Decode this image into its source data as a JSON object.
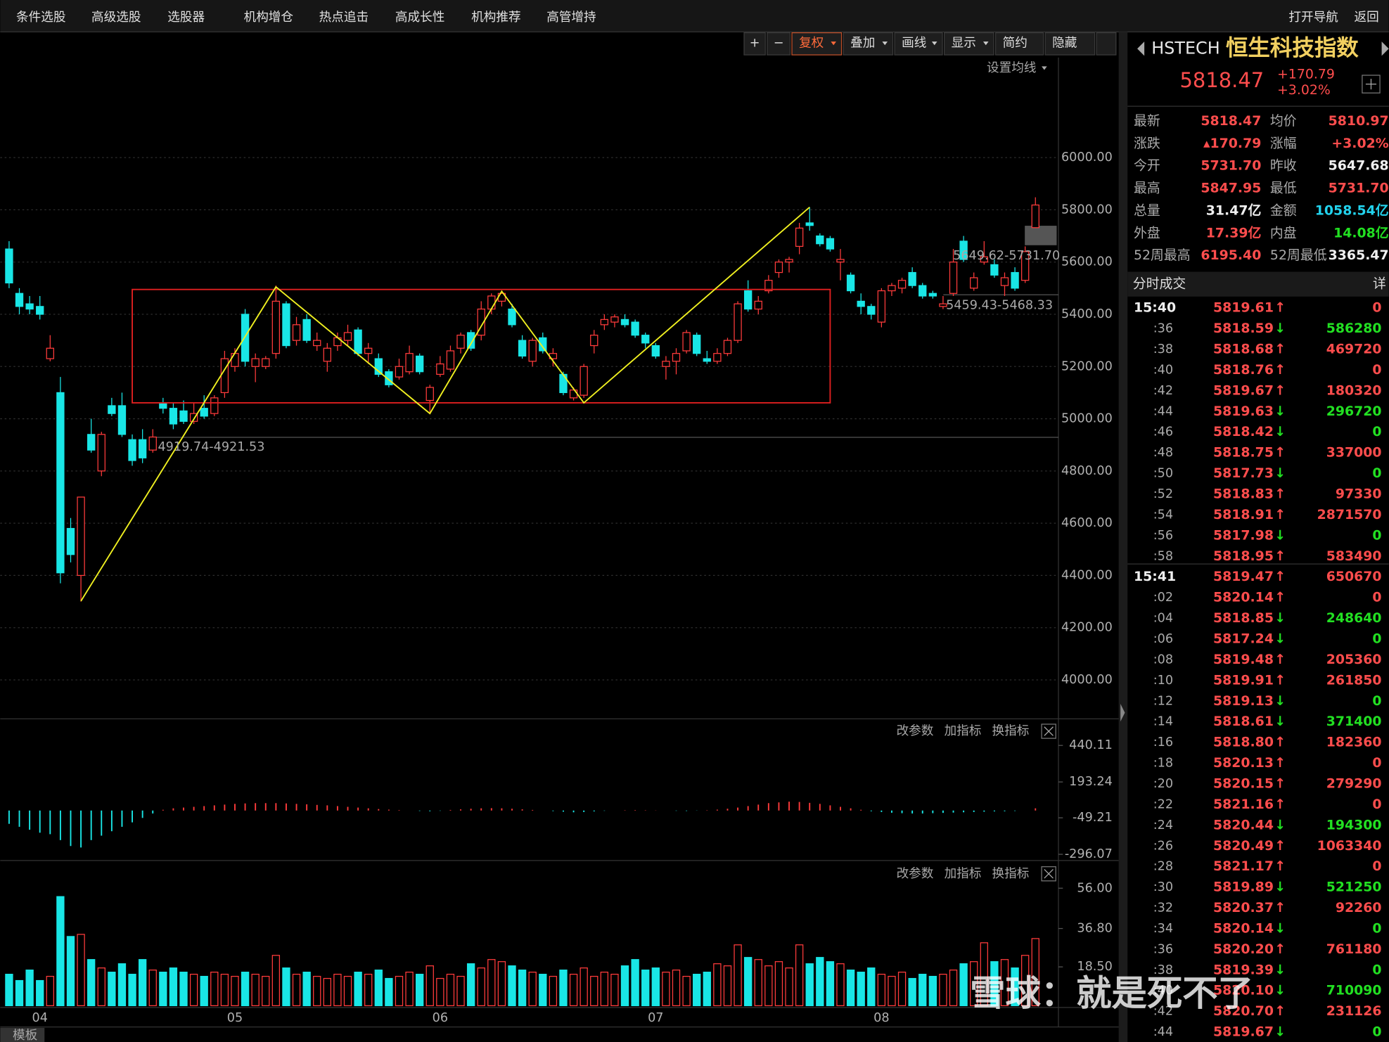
{
  "menu": {
    "items": [
      "条件选股",
      "高级选股",
      "选股器",
      "机构增仓",
      "热点追击",
      "高成长性",
      "机构推荐",
      "高管增持"
    ],
    "right": [
      "打开导航",
      "返回"
    ]
  },
  "toolbar": {
    "buttons": [
      "+",
      "−",
      "复权",
      "叠加",
      "画线",
      "显示",
      "简约",
      "隐藏"
    ],
    "ma_setting": "设置均线"
  },
  "chart_data": [
    {
      "type": "candlestick",
      "up_color": "#ff3b3b",
      "down_color": "#19e6e6",
      "grid": true,
      "ylim": [
        3850.8,
        6298.3
      ],
      "yticks": [
        {
          "value": 6000,
          "label": "6000.00"
        },
        {
          "value": 5800,
          "label": "5800.00"
        },
        {
          "value": 5600,
          "label": "5600.00"
        },
        {
          "value": 5400,
          "label": "5400.00"
        },
        {
          "value": 5200,
          "label": "5200.00"
        },
        {
          "value": 5000,
          "label": "5000.00"
        },
        {
          "value": 4800,
          "label": "4800.00"
        },
        {
          "value": 4600,
          "label": "4600.00"
        },
        {
          "value": 4400,
          "label": "4400.00"
        },
        {
          "value": 4200,
          "label": "4200.00"
        },
        {
          "value": 4000,
          "label": "4000.00"
        }
      ],
      "categories": [
        null,
        null,
        null,
        "04",
        null,
        null,
        null,
        null,
        null,
        null,
        null,
        null,
        null,
        null,
        null,
        null,
        null,
        null,
        null,
        null,
        null,
        null,
        "05",
        null,
        null,
        null,
        null,
        null,
        null,
        null,
        null,
        null,
        null,
        null,
        null,
        null,
        null,
        null,
        null,
        null,
        null,
        null,
        "06",
        null,
        null,
        null,
        null,
        null,
        null,
        null,
        null,
        null,
        null,
        null,
        null,
        null,
        null,
        null,
        null,
        null,
        null,
        null,
        null,
        "07",
        null,
        null,
        null,
        null,
        null,
        null,
        null,
        null,
        null,
        null,
        null,
        null,
        null,
        null,
        null,
        null,
        null,
        null,
        null,
        null,
        null,
        "08",
        null,
        null,
        null,
        null,
        null,
        null,
        null,
        null,
        null,
        null,
        null,
        null,
        null,
        null,
        null
      ],
      "candles": [
        [
          5650,
          5680,
          5500,
          5520
        ],
        [
          5480,
          5500,
          5400,
          5430
        ],
        [
          5440,
          5470,
          5400,
          5420
        ],
        [
          5430,
          5470,
          5380,
          5400
        ],
        [
          5230,
          5320,
          5220,
          5270
        ],
        [
          5100,
          5160,
          4370,
          4410
        ],
        [
          4580,
          4620,
          4450,
          4480
        ],
        [
          4400,
          4700,
          4300,
          4700
        ],
        [
          4940,
          5000,
          4870,
          4880
        ],
        [
          4800,
          4950,
          4780,
          4940
        ],
        [
          5050,
          5080,
          5010,
          5020
        ],
        [
          5050,
          5100,
          4930,
          4940
        ],
        [
          4920,
          4940,
          4820,
          4840
        ],
        [
          4920,
          4960,
          4830,
          4850
        ],
        [
          4880,
          4960,
          4870,
          4930
        ],
        [
          5060,
          5080,
          5020,
          5040
        ],
        [
          5040,
          5060,
          4960,
          4980
        ],
        [
          5030,
          5070,
          4980,
          4990
        ],
        [
          4990,
          5060,
          4980,
          5020
        ],
        [
          5040,
          5090,
          5000,
          5010
        ],
        [
          5020,
          5090,
          5010,
          5080
        ],
        [
          5100,
          5260,
          5080,
          5230
        ],
        [
          5200,
          5270,
          5180,
          5250
        ],
        [
          5400,
          5420,
          5200,
          5220
        ],
        [
          5200,
          5250,
          5140,
          5230
        ],
        [
          5200,
          5240,
          5190,
          5230
        ],
        [
          5250,
          5510,
          5230,
          5450
        ],
        [
          5440,
          5450,
          5270,
          5280
        ],
        [
          5300,
          5390,
          5280,
          5360
        ],
        [
          5380,
          5400,
          5290,
          5300
        ],
        [
          5280,
          5330,
          5260,
          5300
        ],
        [
          5220,
          5290,
          5180,
          5270
        ],
        [
          5280,
          5330,
          5260,
          5310
        ],
        [
          5300,
          5360,
          5280,
          5330
        ],
        [
          5340,
          5350,
          5240,
          5250
        ],
        [
          5250,
          5290,
          5210,
          5270
        ],
        [
          5230,
          5250,
          5160,
          5170
        ],
        [
          5180,
          5190,
          5120,
          5130
        ],
        [
          5160,
          5230,
          5150,
          5200
        ],
        [
          5180,
          5280,
          5170,
          5250
        ],
        [
          5240,
          5250,
          5170,
          5180
        ],
        [
          5070,
          5130,
          5020,
          5120
        ],
        [
          5170,
          5240,
          5160,
          5210
        ],
        [
          5190,
          5280,
          5180,
          5260
        ],
        [
          5270,
          5330,
          5250,
          5320
        ],
        [
          5330,
          5340,
          5260,
          5270
        ],
        [
          5320,
          5450,
          5300,
          5420
        ],
        [
          5420,
          5480,
          5400,
          5470
        ],
        [
          5450,
          5490,
          5430,
          5480
        ],
        [
          5420,
          5440,
          5350,
          5360
        ],
        [
          5300,
          5320,
          5230,
          5240
        ],
        [
          5220,
          5310,
          5200,
          5300
        ],
        [
          5310,
          5330,
          5250,
          5260
        ],
        [
          5230,
          5270,
          5200,
          5250
        ],
        [
          5170,
          5180,
          5090,
          5100
        ],
        [
          5080,
          5120,
          5070,
          5110
        ],
        [
          5090,
          5210,
          5080,
          5200
        ],
        [
          5280,
          5340,
          5250,
          5320
        ],
        [
          5360,
          5400,
          5340,
          5380
        ],
        [
          5370,
          5400,
          5350,
          5390
        ],
        [
          5380,
          5400,
          5350,
          5360
        ],
        [
          5370,
          5380,
          5310,
          5320
        ],
        [
          5320,
          5330,
          5270,
          5290
        ],
        [
          5280,
          5290,
          5230,
          5240
        ],
        [
          5200,
          5240,
          5150,
          5220
        ],
        [
          5220,
          5270,
          5170,
          5250
        ],
        [
          5260,
          5340,
          5250,
          5330
        ],
        [
          5320,
          5330,
          5240,
          5250
        ],
        [
          5230,
          5260,
          5210,
          5220
        ],
        [
          5220,
          5270,
          5210,
          5250
        ],
        [
          5250,
          5310,
          5240,
          5300
        ],
        [
          5300,
          5450,
          5290,
          5440
        ],
        [
          5490,
          5530,
          5410,
          5420
        ],
        [
          5420,
          5470,
          5400,
          5450
        ],
        [
          5490,
          5550,
          5480,
          5530
        ],
        [
          5560,
          5610,
          5540,
          5600
        ],
        [
          5600,
          5620,
          5560,
          5610
        ],
        [
          5660,
          5750,
          5630,
          5730
        ],
        [
          5750,
          5810,
          5720,
          5740
        ],
        [
          5700,
          5710,
          5660,
          5670
        ],
        [
          5690,
          5700,
          5640,
          5650
        ],
        [
          5600,
          5650,
          5530,
          5610
        ],
        [
          5550,
          5560,
          5480,
          5490
        ],
        [
          5450,
          5480,
          5400,
          5430
        ],
        [
          5430,
          5440,
          5380,
          5400
        ],
        [
          5370,
          5500,
          5350,
          5490
        ],
        [
          5490,
          5520,
          5470,
          5510
        ],
        [
          5500,
          5540,
          5480,
          5530
        ],
        [
          5560,
          5580,
          5500,
          5510
        ],
        [
          5510,
          5520,
          5460,
          5470
        ],
        [
          5480,
          5490,
          5460,
          5470
        ],
        [
          5430,
          5470,
          5420,
          5440
        ],
        [
          5480,
          5650,
          5470,
          5600
        ],
        [
          5680,
          5700,
          5600,
          5610
        ],
        [
          5500,
          5560,
          5490,
          5540
        ],
        [
          5600,
          5680,
          5590,
          5620
        ],
        [
          5590,
          5610,
          5540,
          5550
        ],
        [
          5510,
          5560,
          5470,
          5540
        ],
        [
          5560,
          5580,
          5490,
          5500
        ],
        [
          5530,
          5660,
          5520,
          5640
        ],
        [
          5731.7,
          5847.95,
          5731.7,
          5818.47
        ]
      ],
      "zigzag": [
        [
          7,
          4302
        ],
        [
          26,
          5505
        ],
        [
          41,
          5020
        ],
        [
          48,
          5488
        ],
        [
          56,
          5061
        ],
        [
          78,
          5810
        ]
      ],
      "box": {
        "from": 12,
        "to": 80,
        "high": 5495,
        "low": 5061
      },
      "annotations": [
        "4919.74-4921.53",
        "5649.62-5731.70",
        "5459.43-5468.33"
      ]
    },
    {
      "type": "bar",
      "buttons": [
        "改参数",
        "加指标",
        "换指标"
      ],
      "up_color": "#ff3b3b",
      "down_color": "#19e6e6",
      "ylim": [
        -338,
        512
      ],
      "yticks": [
        440.11,
        193.24,
        -49.21,
        -296.07
      ],
      "values": [
        -90,
        -110,
        -130,
        -150,
        -160,
        -200,
        -240,
        -250,
        -200,
        -170,
        -140,
        -110,
        -80,
        -50,
        -20,
        5,
        15,
        20,
        25,
        30,
        35,
        40,
        45,
        48,
        50,
        50,
        50,
        48,
        45,
        42,
        38,
        35,
        30,
        25,
        20,
        15,
        10,
        6,
        3,
        0,
        -3,
        -5,
        -2,
        4,
        8,
        12,
        15,
        16,
        15,
        12,
        8,
        4,
        0,
        -4,
        -8,
        -12,
        -10,
        -6,
        -2,
        0,
        2,
        3,
        2,
        1,
        0,
        -2,
        -3,
        -1,
        2,
        6,
        12,
        20,
        30,
        40,
        50,
        55,
        60,
        58,
        52,
        45,
        35,
        25,
        15,
        5,
        -5,
        -10,
        -15,
        -18,
        -20,
        -20,
        -18,
        -16,
        -14,
        -12,
        -10,
        -8,
        -6,
        -5,
        -3,
        0,
        15
      ]
    },
    {
      "type": "bar",
      "buttons": [
        "改参数",
        "加指标",
        "换指标"
      ],
      "up_color": "#ff3b3b",
      "down_color": "#19e6e6",
      "ylim": [
        0,
        61.6
      ],
      "yticks": [
        {
          "value": 56,
          "label": "56.00"
        },
        {
          "value": 36.8,
          "label": "36.80"
        },
        {
          "value": 18.5,
          "label": "18.50"
        }
      ],
      "values": [
        15,
        12,
        17,
        12,
        14,
        52,
        33,
        34,
        22,
        18,
        16,
        20,
        15,
        22,
        17,
        16,
        18,
        16,
        15,
        14,
        16,
        15,
        14,
        16,
        15,
        14,
        24,
        18,
        15,
        16,
        14,
        13,
        15,
        14,
        16,
        15,
        17,
        13,
        14,
        16,
        15,
        19,
        13,
        15,
        14,
        20,
        18,
        22,
        21,
        19,
        17,
        16,
        15,
        14,
        17,
        15,
        18,
        14,
        16,
        15,
        19,
        22,
        17,
        18,
        16,
        17,
        14,
        15,
        16,
        20,
        19,
        29,
        23,
        22,
        19,
        21,
        18,
        29,
        20,
        23,
        21,
        20,
        17,
        16,
        18,
        15,
        14,
        16,
        13,
        15,
        14,
        15,
        17,
        20,
        21,
        30,
        21,
        22,
        18,
        24,
        32
      ]
    }
  ],
  "quote": {
    "code": "HSTECH",
    "name": "恒生科技指数",
    "price": "5818.47",
    "change": "+170.79",
    "pct": "+3.02%",
    "rows": [
      {
        "label": "最新",
        "value": "5818.47",
        "color": "#ff4d4d",
        "label2": "均价",
        "value2": "5810.97",
        "color2": "#ff4d4d"
      },
      {
        "label": "涨跌",
        "value": "▴170.79",
        "color": "#ff4d4d",
        "label2": "涨幅",
        "value2": "+3.02%",
        "color2": "#ff4d4d"
      },
      {
        "label": "今开",
        "value": "5731.70",
        "color": "#ff4d4d",
        "label2": "昨收",
        "value2": "5647.68",
        "color2": "#f0f0f0"
      },
      {
        "label": "最高",
        "value": "5847.95",
        "color": "#ff4d4d",
        "label2": "最低",
        "value2": "5731.70",
        "color2": "#ff4d4d"
      },
      {
        "label": "总量",
        "value": "31.47亿",
        "color": "#f0f0f0",
        "label2": "金额",
        "value2": "1058.54亿",
        "color2": "#22d3ee"
      },
      {
        "label": "外盘",
        "value": "17.39亿",
        "color": "#ff4d4d",
        "label2": "内盘",
        "value2": "14.08亿",
        "color2": "#22e022"
      },
      {
        "label": "52周最高",
        "value": "6195.40",
        "color": "#ff4d4d",
        "label2": "52周最低",
        "value2": "3365.47",
        "color2": "#f0f0f0"
      }
    ]
  },
  "trades": {
    "title": "分时成交",
    "detail": "详",
    "direction_colors": {
      "↑": "#ff4d4d",
      "↓": "#22e022"
    },
    "rows": [
      [
        "15:40",
        "5819.61",
        "↑",
        "0"
      ],
      [
        ":36",
        "5818.59",
        "↓",
        "586280"
      ],
      [
        ":38",
        "5818.68",
        "↑",
        "469720"
      ],
      [
        ":40",
        "5818.76",
        "↑",
        "0"
      ],
      [
        ":42",
        "5819.67",
        "↑",
        "180320"
      ],
      [
        ":44",
        "5819.63",
        "↓",
        "296720"
      ],
      [
        ":46",
        "5818.42",
        "↓",
        "0"
      ],
      [
        ":48",
        "5818.75",
        "↑",
        "337000"
      ],
      [
        ":50",
        "5817.73",
        "↓",
        "0"
      ],
      [
        ":52",
        "5818.83",
        "↑",
        "97330"
      ],
      [
        ":54",
        "5818.91",
        "↑",
        "2871570"
      ],
      [
        ":56",
        "5817.98",
        "↓",
        "0"
      ],
      [
        ":58",
        "5818.95",
        "↑",
        "583490"
      ],
      [
        "15:41",
        "5819.47",
        "↑",
        "650670"
      ],
      [
        ":02",
        "5820.14",
        "↑",
        "0"
      ],
      [
        ":04",
        "5818.85",
        "↓",
        "248640"
      ],
      [
        ":06",
        "5817.24",
        "↓",
        "0"
      ],
      [
        ":08",
        "5819.48",
        "↑",
        "205360"
      ],
      [
        ":10",
        "5819.91",
        "↑",
        "261850"
      ],
      [
        ":12",
        "5819.13",
        "↓",
        "0"
      ],
      [
        ":14",
        "5818.61",
        "↓",
        "371400"
      ],
      [
        ":16",
        "5818.80",
        "↑",
        "182360"
      ],
      [
        ":18",
        "5820.13",
        "↑",
        "0"
      ],
      [
        ":20",
        "5820.15",
        "↑",
        "279290"
      ],
      [
        ":22",
        "5821.16",
        "↑",
        "0"
      ],
      [
        ":24",
        "5820.44",
        "↓",
        "194300"
      ],
      [
        ":26",
        "5820.49",
        "↑",
        "1063340"
      ],
      [
        ":28",
        "5821.17",
        "↑",
        "0"
      ],
      [
        ":30",
        "5819.89",
        "↓",
        "521250"
      ],
      [
        ":32",
        "5820.37",
        "↑",
        "92260"
      ],
      [
        ":34",
        "5820.14",
        "↓",
        "0"
      ],
      [
        ":36",
        "5820.20",
        "↑",
        "761180"
      ],
      [
        ":38",
        "5819.39",
        "↓",
        "0"
      ],
      [
        ":40",
        "5820.10",
        "↓",
        "710090"
      ],
      [
        ":42",
        "5820.70",
        "↑",
        "231126"
      ],
      [
        ":44",
        "5819.67",
        "↓",
        "0"
      ]
    ]
  },
  "watermark": "雪球：就是死不了",
  "template_tab": "模板"
}
